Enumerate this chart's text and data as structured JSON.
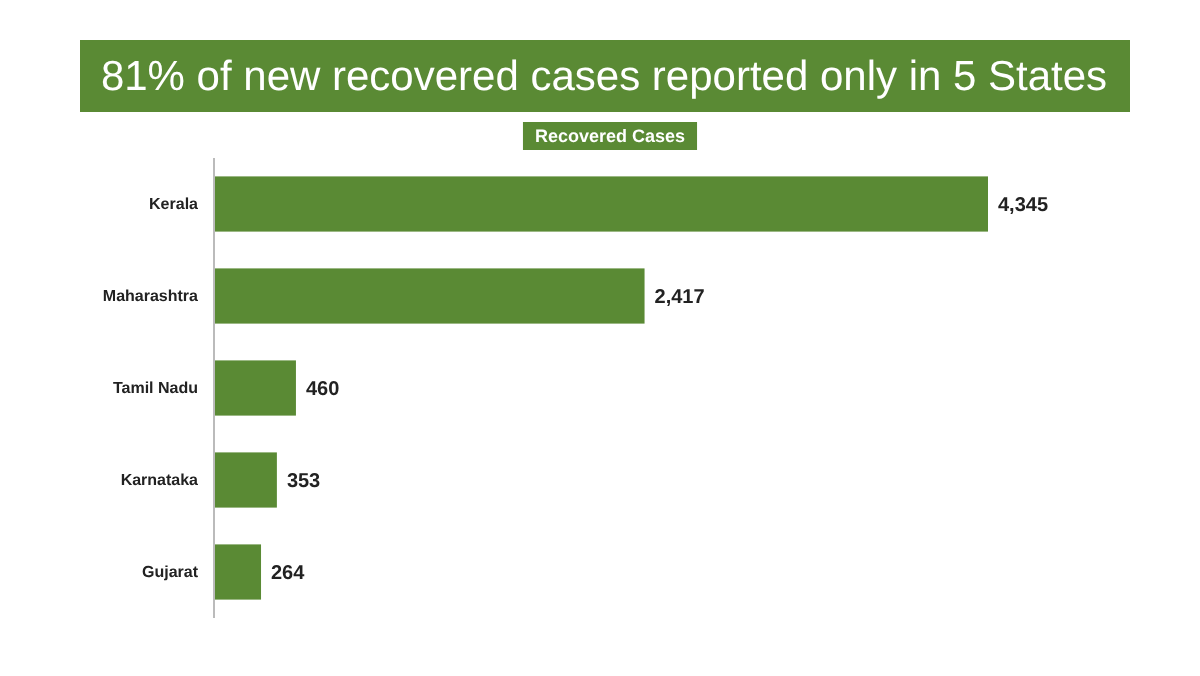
{
  "chart_data": {
    "type": "bar",
    "orientation": "horizontal",
    "title": "81% of new recovered cases reported only in 5 States",
    "subtitle": "Recovered Cases",
    "categories": [
      "Kerala",
      "Maharashtra",
      "Tamil Nadu",
      "Karnataka",
      "Gujarat"
    ],
    "values": [
      4345,
      2417,
      460,
      353,
      264
    ],
    "value_labels": [
      "4,345",
      "2,417",
      "460",
      "353",
      "264"
    ],
    "color": "#5a8a34"
  }
}
